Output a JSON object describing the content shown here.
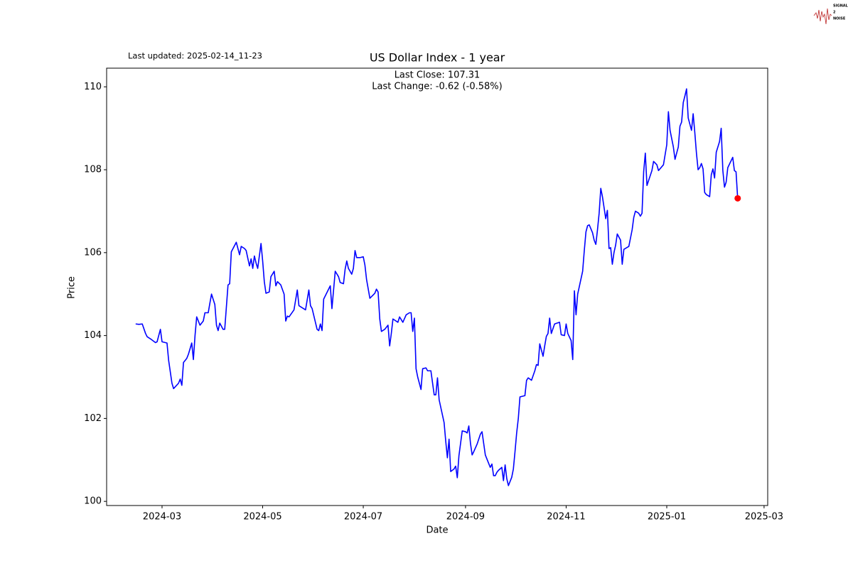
{
  "logo": {
    "lines": [
      "SIGNAL",
      "2",
      "NOISE"
    ]
  },
  "chart_data": {
    "type": "line",
    "title": "US Dollar Index - 1 year",
    "last_updated": "Last updated: 2025-02-14_11-23",
    "annotations": [
      "Last Close: 107.31",
      "Last Change: -0.62 (-0.58%)"
    ],
    "xlabel": "Date",
    "ylabel": "Price",
    "color": "blue",
    "highlight_color": "red",
    "xlim": [
      26.4,
      427.2
    ],
    "xticks": [
      {
        "value": 60,
        "label": "2024-03"
      },
      {
        "value": 121,
        "label": "2024-05"
      },
      {
        "value": 182,
        "label": "2024-07"
      },
      {
        "value": 244,
        "label": "2024-09"
      },
      {
        "value": 305,
        "label": "2024-11"
      },
      {
        "value": 366,
        "label": "2025-01"
      },
      {
        "value": 425,
        "label": "2025-03"
      }
    ],
    "ylim": [
      99.9,
      110.45
    ],
    "yticks": [
      100,
      102,
      104,
      106,
      108,
      110
    ],
    "x": [
      44,
      46,
      48,
      50,
      51,
      53,
      56,
      57,
      59,
      60,
      63,
      64,
      66,
      67,
      70,
      71,
      72,
      73,
      75,
      76,
      78,
      79,
      80,
      81,
      83,
      85,
      86,
      88,
      89,
      90,
      92,
      93,
      94,
      95,
      97,
      98,
      100,
      101,
      102,
      105,
      107,
      108,
      110,
      111,
      113,
      114,
      115,
      116,
      117,
      118,
      120,
      121,
      122,
      123,
      125,
      126,
      128,
      129,
      130,
      132,
      134,
      135,
      136,
      137,
      140,
      142,
      143,
      147,
      149,
      150,
      151,
      154,
      155,
      156,
      157,
      158,
      162,
      163,
      165,
      167,
      168,
      170,
      171,
      172,
      173,
      175,
      176,
      177,
      178,
      180,
      182,
      183,
      184,
      186,
      188,
      189,
      190,
      191,
      192,
      193,
      195,
      197,
      198,
      199,
      200,
      203,
      204,
      206,
      208,
      210,
      211,
      212,
      213,
      214,
      215,
      217,
      218,
      220,
      221,
      223,
      225,
      226,
      227,
      228,
      231,
      232,
      233,
      234,
      235,
      237,
      238,
      239,
      240,
      242,
      244,
      245,
      246,
      247,
      248,
      249,
      251,
      253,
      254,
      256,
      259,
      260,
      261,
      262,
      263,
      264,
      266,
      267,
      268,
      269,
      270,
      272,
      273,
      274,
      275,
      276,
      277,
      280,
      281,
      282,
      284,
      286,
      287,
      288,
      289,
      291,
      292,
      293,
      294,
      295,
      296,
      298,
      301,
      302,
      304,
      305,
      306,
      308,
      309,
      310,
      311,
      312,
      315,
      316,
      317,
      318,
      319,
      321,
      322,
      323,
      324,
      325,
      326,
      327,
      329,
      330,
      331,
      332,
      333,
      334,
      335,
      336,
      338,
      339,
      340,
      343,
      345,
      346,
      347,
      349,
      350,
      351,
      352,
      353,
      354,
      357,
      358,
      360,
      361,
      364,
      366,
      367,
      368,
      370,
      371,
      373,
      374,
      375,
      376,
      377,
      378,
      379,
      380,
      381,
      382,
      383,
      384,
      385,
      386,
      387,
      388,
      389,
      390,
      392,
      393,
      394,
      395,
      396,
      398,
      399,
      400,
      401,
      402,
      403,
      406,
      407,
      408,
      409
    ],
    "values": [
      104.28,
      104.27,
      104.28,
      104.05,
      103.97,
      103.92,
      103.83,
      103.85,
      104.15,
      103.85,
      103.82,
      103.4,
      102.85,
      102.72,
      102.85,
      102.95,
      102.8,
      103.35,
      103.45,
      103.55,
      103.82,
      103.42,
      104.0,
      104.45,
      104.25,
      104.35,
      104.55,
      104.55,
      104.78,
      105.0,
      104.75,
      104.25,
      104.12,
      104.3,
      104.15,
      104.15,
      105.22,
      105.25,
      106.02,
      106.25,
      105.95,
      106.15,
      106.1,
      106.05,
      105.68,
      105.85,
      105.62,
      105.92,
      105.75,
      105.62,
      106.22,
      105.8,
      105.3,
      105.02,
      105.05,
      105.42,
      105.55,
      105.2,
      105.3,
      105.22,
      105.0,
      104.35,
      104.47,
      104.45,
      104.62,
      105.1,
      104.72,
      104.62,
      105.1,
      104.72,
      104.65,
      104.15,
      104.12,
      104.28,
      104.12,
      104.88,
      105.2,
      104.65,
      105.55,
      105.42,
      105.28,
      105.25,
      105.6,
      105.8,
      105.62,
      105.48,
      105.62,
      106.05,
      105.88,
      105.88,
      105.9,
      105.7,
      105.35,
      104.9,
      104.98,
      105.02,
      105.12,
      105.05,
      104.4,
      104.1,
      104.15,
      104.25,
      103.75,
      104.05,
      104.4,
      104.32,
      104.45,
      104.32,
      104.5,
      104.55,
      104.55,
      104.1,
      104.42,
      103.2,
      103.0,
      102.7,
      103.2,
      103.22,
      103.15,
      103.15,
      102.57,
      102.57,
      102.98,
      102.45,
      101.9,
      101.45,
      101.05,
      101.5,
      100.72,
      100.78,
      100.85,
      100.57,
      101.1,
      101.7,
      101.68,
      101.65,
      101.82,
      101.4,
      101.12,
      101.2,
      101.38,
      101.62,
      101.68,
      101.12,
      100.82,
      100.9,
      100.62,
      100.62,
      100.7,
      100.75,
      100.82,
      100.5,
      100.88,
      100.55,
      100.38,
      100.58,
      100.78,
      101.2,
      101.65,
      102.0,
      102.52,
      102.55,
      102.92,
      102.98,
      102.92,
      103.15,
      103.3,
      103.28,
      103.8,
      103.5,
      103.75,
      103.98,
      104.05,
      104.42,
      104.05,
      104.28,
      104.32,
      104.02,
      104.0,
      104.28,
      104.05,
      103.88,
      103.42,
      105.08,
      104.5,
      105.0,
      105.55,
      106.05,
      106.5,
      106.65,
      106.67,
      106.48,
      106.3,
      106.2,
      106.55,
      106.95,
      107.55,
      107.35,
      106.82,
      107.02,
      106.1,
      106.12,
      105.72,
      106.0,
      106.18,
      106.45,
      106.3,
      105.72,
      106.08,
      106.15,
      106.55,
      106.85,
      107.0,
      106.95,
      106.88,
      106.95,
      107.95,
      108.4,
      107.62,
      107.98,
      108.2,
      108.12,
      107.98,
      108.12,
      108.6,
      109.4,
      108.95,
      108.55,
      108.25,
      108.55,
      109.05,
      109.15,
      109.62,
      109.78,
      109.95,
      109.25,
      109.1,
      108.95,
      109.35,
      108.9,
      108.4,
      108.0,
      108.05,
      108.15,
      108.02,
      107.45,
      107.4,
      107.35,
      107.88,
      108.02,
      107.8,
      108.42,
      108.68,
      109.0,
      107.98,
      107.58,
      107.7,
      108.05,
      108.3,
      107.98,
      107.95,
      107.31
    ]
  }
}
